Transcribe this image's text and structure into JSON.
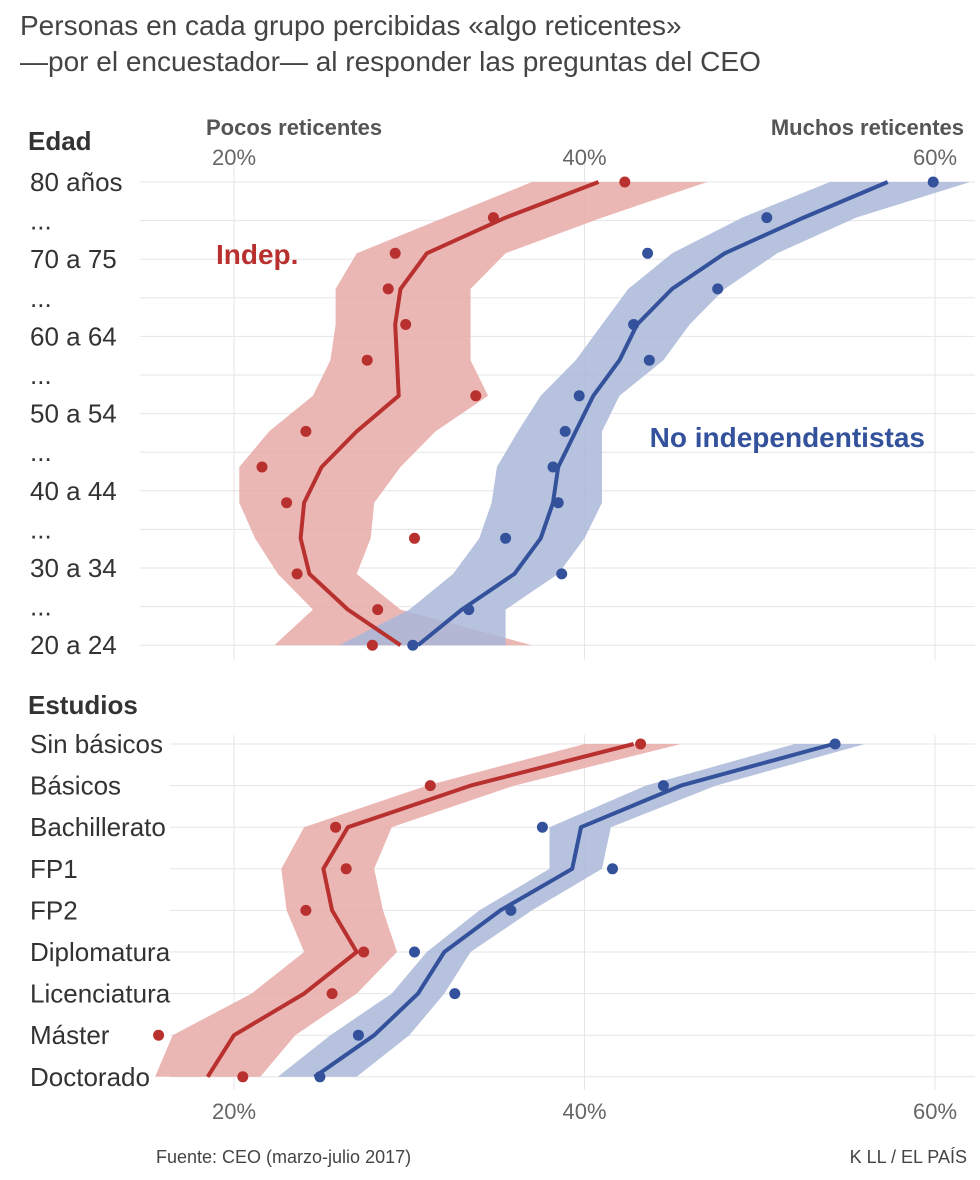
{
  "title_line1": "Personas en cada grupo percibidas «algo reticentes»",
  "title_line2": "—por el encuestador— al responder las preguntas del CEO",
  "hint_left": "Pocos reticentes",
  "hint_right": "Muchos reticentes",
  "source": "Fuente: CEO (marzo-julio 2017)",
  "credit": "K LL / EL PAÍS",
  "colors": {
    "indep": "#b8312f",
    "indep_band": "#e8aaa8",
    "no_indep": "#33529b",
    "no_indep_band": "#a9b7d8",
    "grid": "#e6e6e6"
  },
  "chart_data": [
    {
      "type": "line",
      "section": "Edad",
      "x_unit": "% algo reticentes",
      "xlim": [
        10,
        62
      ],
      "ticks": [
        "20%",
        "40%",
        "60%"
      ],
      "tick_values": [
        20,
        40,
        60
      ],
      "categories": [
        "80 años",
        "...",
        "70 a 75",
        "...",
        "60 a 64",
        "...",
        "50 a 54",
        "...",
        "40 a 44",
        "...",
        "30 a 34",
        "...",
        "20 a 24"
      ],
      "series": [
        {
          "name": "Indep.",
          "label": "Indep.",
          "color_key": "indep",
          "points": [
            42.3,
            34.8,
            29.2,
            28.8,
            29.8,
            27.6,
            33.8,
            24.1,
            21.6,
            23.0,
            30.3,
            23.6,
            28.2,
            27.9
          ],
          "point_y": [
            80,
            76.5,
            73,
            70,
            67,
            64,
            61,
            58,
            55,
            52,
            49,
            46,
            43,
            40
          ],
          "trend": [
            40.8,
            35.5,
            31.0,
            29.5,
            29.2,
            29.3,
            29.4,
            27.0,
            25.0,
            24.0,
            23.8,
            24.3,
            26.5,
            29.5
          ],
          "band_low": [
            37.0,
            32.0,
            27.0,
            25.8,
            25.8,
            25.5,
            24.5,
            22.0,
            20.3,
            20.3,
            21.2,
            22.5,
            24.5,
            22.3
          ],
          "band_high": [
            47.0,
            41.0,
            35.5,
            33.5,
            33.5,
            33.5,
            34.5,
            31.5,
            29.5,
            28.0,
            27.8,
            27.0,
            29.5,
            37.0
          ]
        },
        {
          "name": "No independentistas",
          "label": "No independentistas",
          "color_key": "no_indep",
          "points": [
            59.9,
            50.4,
            43.6,
            47.6,
            42.8,
            43.7,
            39.7,
            38.9,
            38.2,
            38.5,
            35.5,
            38.7,
            33.4,
            30.2
          ],
          "point_y": [
            80,
            76.5,
            73,
            70,
            67,
            64,
            61,
            58,
            55,
            52,
            49,
            46,
            43,
            40
          ],
          "trend": [
            57.3,
            52.5,
            48.0,
            45.0,
            43.0,
            42.0,
            40.5,
            39.5,
            38.5,
            38.2,
            37.5,
            36.0,
            33.0,
            30.5
          ],
          "band_low": [
            54.0,
            49.0,
            45.0,
            42.5,
            41.0,
            39.5,
            37.5,
            36.2,
            35.0,
            34.7,
            34.0,
            32.5,
            30.0,
            26.0
          ],
          "band_high": [
            62.0,
            55.5,
            51.0,
            48.0,
            46.0,
            44.5,
            42.0,
            41.0,
            41.0,
            41.0,
            40.0,
            38.5,
            35.5,
            35.5
          ]
        }
      ]
    },
    {
      "type": "line",
      "section": "Estudios",
      "x_unit": "% algo reticentes",
      "xlim": [
        10,
        62
      ],
      "ticks": [
        "20%",
        "40%",
        "60%"
      ],
      "tick_values": [
        20,
        40,
        60
      ],
      "categories": [
        "Sin básicos",
        "Básicos",
        "Bachillerato",
        "FP1",
        "FP2",
        "Diplomatura",
        "Licenciatura",
        "Máster",
        "Doctorado"
      ],
      "series": [
        {
          "name": "Indep.",
          "color_key": "indep",
          "points": [
            43.2,
            31.2,
            25.8,
            26.4,
            24.1,
            27.4,
            25.6,
            15.7,
            20.5
          ],
          "trend": [
            42.8,
            33.5,
            26.5,
            25.1,
            25.6,
            27.0,
            24.0,
            20.0,
            18.5
          ],
          "band_low": [
            40.0,
            31.0,
            24.0,
            22.7,
            23.0,
            24.0,
            21.0,
            16.5,
            15.5
          ],
          "band_high": [
            45.5,
            36.0,
            29.0,
            28.0,
            28.5,
            29.3,
            27.0,
            23.5,
            21.5
          ]
        },
        {
          "name": "No independentistas",
          "color_key": "no_indep",
          "points": [
            54.3,
            44.5,
            37.6,
            41.6,
            35.8,
            30.3,
            32.6,
            27.1,
            24.9
          ],
          "trend": [
            54.2,
            45.5,
            39.8,
            39.3,
            35.2,
            32.0,
            30.5,
            28.0,
            24.6
          ],
          "band_low": [
            52.0,
            43.5,
            38.0,
            38.0,
            34.0,
            31.0,
            29.0,
            25.5,
            22.5
          ],
          "band_high": [
            56.0,
            47.5,
            41.5,
            41.0,
            37.0,
            33.5,
            32.0,
            30.0,
            27.0
          ]
        }
      ]
    }
  ]
}
